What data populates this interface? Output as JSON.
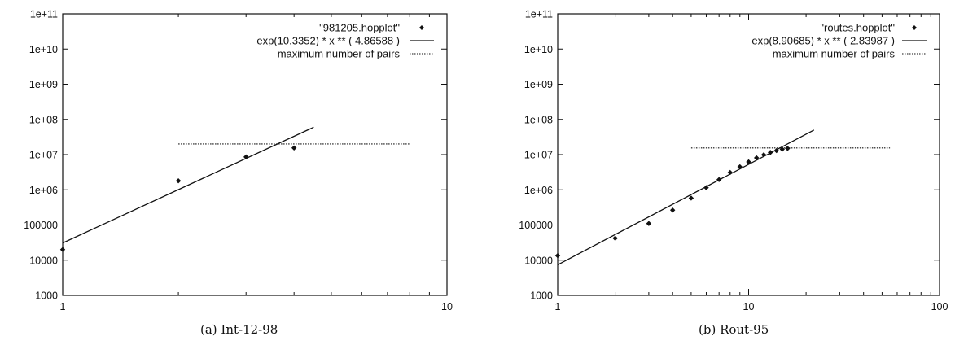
{
  "chart_data": [
    {
      "type": "scatter",
      "caption": "(a) Int-12-98",
      "xscale": "log",
      "yscale": "log",
      "xlim": [
        1,
        10
      ],
      "ylim": [
        1000,
        100000000000
      ],
      "xticks": [
        1,
        10
      ],
      "xtick_labels": [
        "1",
        "10"
      ],
      "yticks": [
        1000,
        10000,
        100000,
        1000000,
        10000000,
        100000000,
        1000000000,
        10000000000,
        100000000000
      ],
      "ytick_labels": [
        "1000",
        "10000",
        "100000",
        "1e+06",
        "1e+07",
        "1e+08",
        "1e+09",
        "1e+10",
        "1e+11"
      ],
      "legend_position": "top-right",
      "series": [
        {
          "name": "\"981205.hopplot\"",
          "style": "points",
          "x": [
            1,
            2,
            3,
            4
          ],
          "y": [
            20000,
            1800000,
            8600000,
            15500000
          ]
        },
        {
          "name": "exp(10.3352)  * x ** (  4.86588 )",
          "style": "solid",
          "x": [
            1,
            4.5
          ],
          "y": [
            30800,
            60000000
          ]
        },
        {
          "name": "maximum number of pairs",
          "style": "dotted",
          "x": [
            2,
            8
          ],
          "y": [
            20000000,
            20000000
          ]
        }
      ]
    },
    {
      "type": "scatter",
      "caption": "(b) Rout-95",
      "xscale": "log",
      "yscale": "log",
      "xlim": [
        1,
        100
      ],
      "ylim": [
        1000,
        100000000000
      ],
      "xticks": [
        1,
        10,
        100
      ],
      "xtick_labels": [
        "1",
        "10",
        "100"
      ],
      "yticks": [
        1000,
        10000,
        100000,
        1000000,
        10000000,
        100000000,
        1000000000,
        10000000000,
        100000000000
      ],
      "ytick_labels": [
        "1000",
        "10000",
        "100000",
        "1e+06",
        "1e+07",
        "1e+08",
        "1e+09",
        "1e+10",
        "1e+11"
      ],
      "legend_position": "top-right",
      "series": [
        {
          "name": "\"routes.hopplot\"",
          "style": "points",
          "x": [
            1,
            2,
            3,
            4,
            5,
            6,
            7,
            8,
            9,
            10,
            11,
            12,
            13,
            14,
            15,
            16
          ],
          "y": [
            13500,
            42000,
            110000,
            265000,
            580000,
            1150000,
            1950000,
            3100000,
            4500000,
            6200000,
            8100000,
            9900000,
            11500000,
            13000000,
            14200000,
            15000000
          ]
        },
        {
          "name": "exp(8.90685)  * x ** (  2.83987 )",
          "style": "solid",
          "x": [
            1,
            22
          ],
          "y": [
            7400,
            50000000
          ]
        },
        {
          "name": "maximum number of pairs",
          "style": "dotted",
          "x": [
            5,
            55
          ],
          "y": [
            15500000,
            15500000
          ]
        }
      ]
    }
  ]
}
